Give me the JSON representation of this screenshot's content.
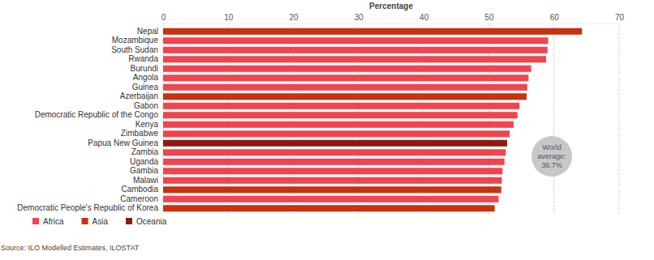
{
  "chart_data": {
    "type": "bar",
    "orientation": "horizontal",
    "x_label": "Percentage",
    "categories": [
      "Nepal",
      "Mozambique",
      "South Sudan",
      "Rwanda",
      "Burundi",
      "Angola",
      "Guinea",
      "Azerbaijan",
      "Gabon",
      "Democratic Republic of the Congo",
      "Kenya",
      "Zimbabwe",
      "Papua New Guinea",
      "Zambia",
      "Uganda",
      "Gambia",
      "Malawi",
      "Cambodia",
      "Cameroon",
      "Democratic People's Republic of Korea"
    ],
    "series": [
      {
        "name": "Africa",
        "color": "#f0444f",
        "values": [
          null,
          59.1,
          59.0,
          58.8,
          56.5,
          56.1,
          55.9,
          null,
          54.7,
          54.4,
          53.8,
          53.2,
          null,
          52.6,
          52.4,
          52.1,
          52.0,
          null,
          51.5,
          null
        ]
      },
      {
        "name": "Asia",
        "color": "#c9310f",
        "values": [
          64.3,
          null,
          null,
          null,
          null,
          null,
          null,
          55.8,
          null,
          null,
          null,
          null,
          null,
          null,
          null,
          null,
          null,
          51.9,
          null,
          50.9
        ]
      },
      {
        "name": "Oceania",
        "color": "#8a1a12",
        "values": [
          null,
          null,
          null,
          null,
          null,
          null,
          null,
          null,
          null,
          null,
          null,
          null,
          52.8,
          null,
          null,
          null,
          null,
          null,
          null,
          null
        ]
      }
    ],
    "xlim": [
      0,
      70
    ],
    "xticks": [
      0,
      10,
      20,
      30,
      40,
      50,
      60,
      70
    ],
    "grid": true,
    "legend": "bottom left",
    "annotation": "World average: 36.7%",
    "source": "Source: ILO Modelled Estimates, ILOSTAT"
  }
}
